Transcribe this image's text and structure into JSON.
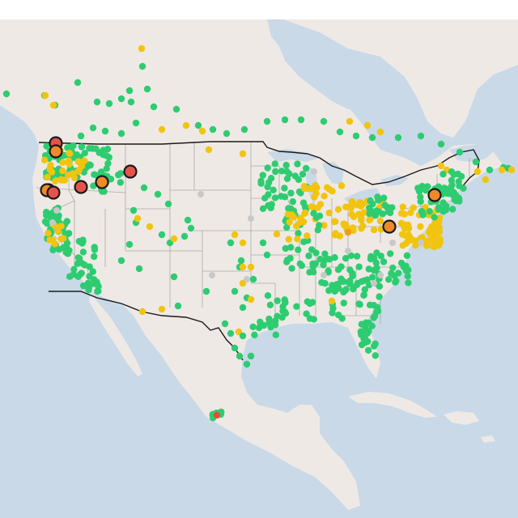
{
  "map": {
    "colors": {
      "water": "#c9d9e8",
      "land": "#efe9e6",
      "land_alt": "#ece6e3",
      "state_border": "#a9a9a9",
      "country_border": "#1a1a1a",
      "mountains": "#e3ddd9"
    },
    "sensor_colors": {
      "good": "#2ecc71",
      "moderate": "#f1c40f",
      "sensitive": "#f39c12",
      "unhealthy": "#e74c3c",
      "no_data": "#c8c8c8"
    },
    "highlight_colors": {
      "sensitive": "#f0892a",
      "unhealthy": "#e5544a"
    }
  }
}
